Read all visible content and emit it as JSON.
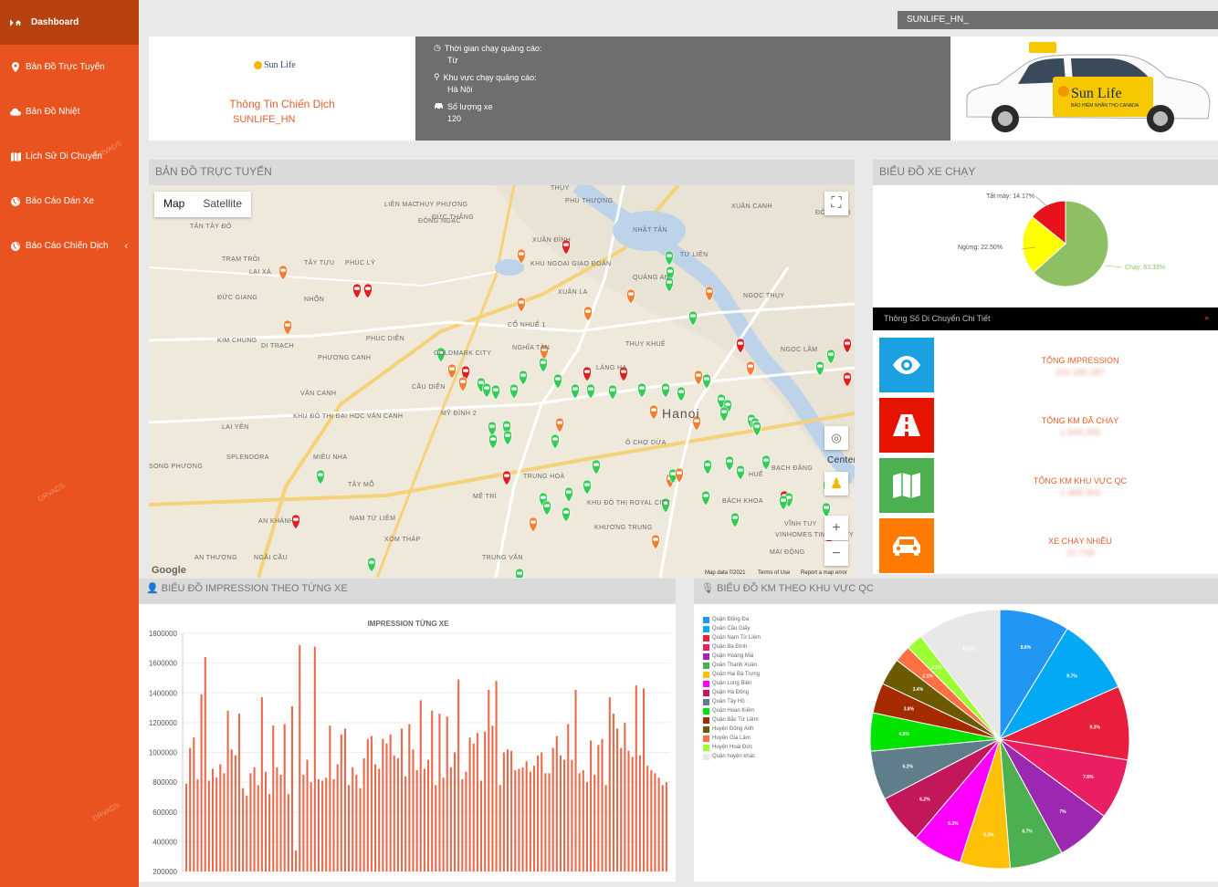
{
  "sidebar": {
    "items": [
      {
        "label": "Dashboard",
        "icon": "play-home-icon"
      },
      {
        "label": "Bản Đồ Trực Tuyến",
        "icon": "map-marker-icon"
      },
      {
        "label": "Bản Đồ Nhiệt",
        "icon": "cloud-icon"
      },
      {
        "label": "Lịch Sử Di Chuyển",
        "icon": "map-icon"
      },
      {
        "label": "Báo Cáo Dán Xe",
        "icon": "globe-icon"
      },
      {
        "label": "Báo Cáo Chiến Dịch",
        "icon": "globe-icon"
      }
    ],
    "watermark": "DRVADS"
  },
  "topbar": {
    "campaign_select": "SUNLIFE_HN_"
  },
  "header": {
    "logo_text": "Sun Life",
    "info_title": "Thông Tin Chiến Dịch",
    "campaign_code": "SUNLIFE_HN",
    "time_label": "Thời gian chạy quảng cáo:",
    "time_value": "Từ",
    "area_label": "Khu vực chạy quảng cáo:",
    "area_value": "Hà Nội",
    "cars_label": "Số lượng xe",
    "cars_value": "120",
    "car_brand": "Sun Life",
    "car_sub": "BẢO HIỂM NHÂN THỌ CANADA"
  },
  "map_panel": {
    "title": "BẢN ĐỒ TRỰC TUYẾN",
    "map_btn": "Map",
    "satellite_btn": "Satellite",
    "city_label": "Hanoi",
    "place_labels": [
      "TÂN TÂY ĐÔ",
      "TRẠM TRÔI",
      "LẠI XÁ",
      "ĐỨC GIANG",
      "KIM CHUNG",
      "PHÚC DIỄN",
      "NHỔN",
      "TÂY TỰU",
      "PHÚC LÝ",
      "LAI YÊN",
      "SPLENDORA",
      "SONG PHƯƠNG",
      "AN KHÁNH",
      "TÂY MỖ",
      "NAM TỪ LIÊM",
      "AN THƯỢNG",
      "NGÃI CẦU",
      "XÓM THÁP",
      "TRUNG VĂN",
      "MỄ TRÌ",
      "KHU ĐÔ THỊ ĐẠI HỌC VĂN CANH",
      "MIÊU NHA",
      "CẦU DIỄN",
      "MỸ ĐÌNH 2",
      "GOLDMARK CITY",
      "NGHĨA TÂN",
      "CỔ NHUẾ 1",
      "XUÂN LA",
      "KHU NGOẠI GIAO ĐOÀN",
      "XUÂN ĐỈNH",
      "QUẢNG AN",
      "TỨ LIÊN",
      "NHẬT TÂN",
      "PHÚ THƯỢNG",
      "ĐÔNG HỘI",
      "XUÂN CANH",
      "NGỌC THỤY",
      "NGỌC LÂM",
      "THUỴ KHUÊ",
      "LÁNG HẠ",
      "Ô CHỢ DỪA",
      "TRUNG HOÀ",
      "KHU ĐÔ THỊ ROYAL CITY",
      "KHƯƠNG TRUNG",
      "BÁCH KHOA",
      "VĨNH TUY",
      "VINHOMES TIMES CITY",
      "MAI ĐỘNG",
      "HUẾ",
      "BẠCH ĐẰNG",
      "VĂN CANH",
      "PHƯƠNG CANH",
      "DI TRẠCH",
      "LIÊN MẠC",
      "THỤY PHƯƠNG",
      "ĐÔNG NGẠC",
      "ĐỨC THẮNG",
      "THỤY"
    ],
    "map_data_label": "Map data ©2021",
    "terms_label": "Terms of Use",
    "report_label": "Report a map error",
    "google_label": "Google",
    "center_label": "Center"
  },
  "car_chart": {
    "title": "BIỂU ĐỒ XE CHẠY",
    "chart_data": {
      "type": "pie",
      "slices": [
        {
          "label": "Chạy",
          "value": 63.33,
          "color": "#8cc063"
        },
        {
          "label": "Ngừng",
          "value": 22.5,
          "color": "#ffff00"
        },
        {
          "label": "Tắt máy",
          "value": 14.17,
          "color": "#e8111a"
        }
      ],
      "label_texts": [
        "Chạy: 63.33%",
        "Ngừng: 22.50%",
        "Tắt máy: 14.17%"
      ]
    }
  },
  "stats": {
    "header": "Thông Số Di Chuyển Chi Tiết",
    "items": [
      {
        "label": "TỔNG IMPRESSION",
        "value": "116.195.187",
        "color": "#1ba1e2",
        "icon": "eye-icon"
      },
      {
        "label": "TỔNG KM ĐÃ CHẠY",
        "value": "1.549.269",
        "color": "#e51400",
        "icon": "road-icon"
      },
      {
        "label": "TỔNG KM KHU VỰC QC",
        "value": "1.388.363",
        "color": "#4caf50",
        "icon": "map-icon"
      },
      {
        "label": "XE CHẠY NHIỀU",
        "value": "22.759",
        "color": "#ff7a00",
        "icon": "car-icon"
      }
    ]
  },
  "impression_chart": {
    "title": "BIỂU ĐỒ IMPRESSION THEO TỪNG XE",
    "chart_data": {
      "type": "bar",
      "title": "IMPRESSION TỪNG XE",
      "ylim": [
        200000,
        1800000
      ],
      "yticks": [
        1800000,
        1600000,
        1400000,
        1200000,
        1000000,
        800000,
        600000,
        400000,
        200000
      ],
      "ytick_labels": [
        "1800000",
        "1600000",
        "1400000",
        "1200000",
        "1000000",
        "800000",
        "600000",
        "400000",
        "200000"
      ],
      "color": "#e9694a",
      "values": [
        790000,
        1030000,
        1100000,
        820000,
        1390000,
        1640000,
        810000,
        890000,
        830000,
        920000,
        860000,
        1280000,
        1020000,
        980000,
        1260000,
        760000,
        710000,
        860000,
        900000,
        780000,
        1370000,
        870000,
        720000,
        1180000,
        900000,
        850000,
        1190000,
        720000,
        1310000,
        340000,
        1720000,
        850000,
        950000,
        800000,
        1710000,
        820000,
        810000,
        830000,
        1180000,
        820000,
        920000,
        1120000,
        1160000,
        780000,
        900000,
        850000,
        760000,
        960000,
        1090000,
        1110000,
        920000,
        890000,
        1090000,
        1060000,
        1120000,
        980000,
        960000,
        1160000,
        840000,
        1190000,
        1020000,
        880000,
        1350000,
        890000,
        950000,
        1280000,
        780000,
        1260000,
        830000,
        1240000,
        900000,
        1000000,
        1490000,
        820000,
        870000,
        1100000,
        1060000,
        1130000,
        810000,
        1140000,
        1420000,
        1180000,
        1480000,
        780000,
        1000000,
        1020000,
        1010000,
        880000,
        890000,
        900000,
        940000,
        870000,
        910000,
        980000,
        1000000,
        860000,
        860000,
        1030000,
        1110000,
        980000,
        950000,
        1190000,
        950000,
        1420000,
        860000,
        880000,
        800000,
        1080000,
        850000,
        1050000,
        1090000,
        780000,
        1370000,
        1260000,
        1160000,
        1030000,
        1200000,
        1010000,
        970000,
        1450000,
        980000,
        1430000,
        910000,
        880000,
        860000,
        830000,
        780000,
        800000
      ]
    }
  },
  "km_chart": {
    "title": "BIỂU ĐỒ KM THEO KHU VỰC QC",
    "chart_data": {
      "type": "pie",
      "slices": [
        {
          "label": "Quận Đống Đa",
          "value": 8.8,
          "text": "8.8%",
          "color": "#2196f3"
        },
        {
          "label": "Quận Cầu Giấy",
          "value": 9.7,
          "text": "9.7%",
          "color": "#03a9f4"
        },
        {
          "label": "Quận Nam Từ Liêm",
          "value": 9.3,
          "text": "9.3%",
          "color": "#e91e3c"
        },
        {
          "label": "Quận Ba Đình",
          "value": 7.6,
          "text": "7.6%",
          "color": "#e91e63"
        },
        {
          "label": "Quận Hoàng Mai",
          "value": 7.0,
          "text": "7%",
          "color": "#9c27b0"
        },
        {
          "label": "Quận Thanh Xuân",
          "value": 6.7,
          "text": "6.7%",
          "color": "#4caf50"
        },
        {
          "label": "Quận Hai Bà Trưng",
          "value": 6.3,
          "text": "6.3%",
          "color": "#ffc107"
        },
        {
          "label": "Quận Long Biên",
          "value": 6.3,
          "text": "6.3%",
          "color": "#ff00ff"
        },
        {
          "label": "Quận Hà Đông",
          "value": 6.2,
          "text": "6.2%",
          "color": "#c2185b"
        },
        {
          "label": "Quận Tây Hồ",
          "value": 6.2,
          "text": "6.2%",
          "color": "#607d8b"
        },
        {
          "label": "Quận Hoàn Kiếm",
          "value": 4.8,
          "text": "4.8%",
          "color": "#00e400"
        },
        {
          "label": "Quận Bắc Từ Liêm",
          "value": 3.8,
          "text": "3.8%",
          "color": "#a52a00"
        },
        {
          "label": "Huyện Đông Anh",
          "value": 3.4,
          "text": "3.4%",
          "color": "#6b5a00"
        },
        {
          "label": "Huyện Gia Lâm",
          "value": 2.1,
          "text": "2.1%",
          "color": "#ff7043"
        },
        {
          "label": "Huyện Hoài Đức",
          "value": 2.1,
          "text": "2.1%",
          "color": "#9cff33"
        },
        {
          "label": "Quận huyện khác",
          "value": 10.5,
          "text": "10.5%",
          "color": "#e8e8e8"
        }
      ]
    }
  }
}
